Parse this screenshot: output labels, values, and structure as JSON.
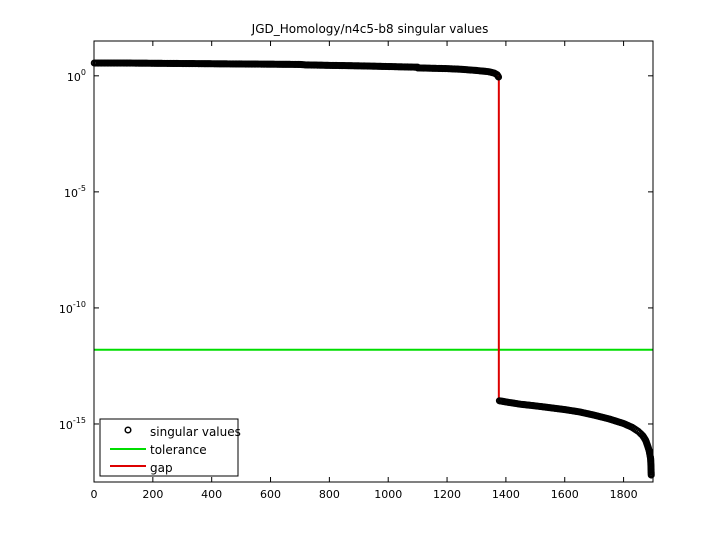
{
  "chart_data": {
    "type": "scatter",
    "title": "JGD_Homology/n4c5-b8 singular values",
    "xlabel": "",
    "ylabel": "",
    "xlim": [
      0,
      1900
    ],
    "ylim_log10": [
      -17.5,
      1.5
    ],
    "yscale": "log",
    "grid": false,
    "legend_position": "bottom-left",
    "x_ticks": [
      {
        "value": 0,
        "label": "0"
      },
      {
        "value": 200,
        "label": "200"
      },
      {
        "value": 400,
        "label": "400"
      },
      {
        "value": 600,
        "label": "600"
      },
      {
        "value": 800,
        "label": "800"
      },
      {
        "value": 1000,
        "label": "1000"
      },
      {
        "value": 1200,
        "label": "1200"
      },
      {
        "value": 1400,
        "label": "1400"
      },
      {
        "value": 1600,
        "label": "1600"
      },
      {
        "value": 1800,
        "label": "1800"
      }
    ],
    "y_ticks": [
      {
        "log10": 0,
        "base": "10",
        "exp": "0"
      },
      {
        "log10": -5,
        "base": "10",
        "exp": "-5"
      },
      {
        "log10": -10,
        "base": "10",
        "exp": "-10"
      },
      {
        "log10": -15,
        "base": "10",
        "exp": "-15"
      }
    ],
    "series": [
      {
        "name": "singular values",
        "style": "marker",
        "color": "#000000",
        "points_log10": [
          [
            1,
            0.55
          ],
          [
            100,
            0.55
          ],
          [
            200,
            0.54
          ],
          [
            300,
            0.53
          ],
          [
            400,
            0.52
          ],
          [
            500,
            0.51
          ],
          [
            600,
            0.5
          ],
          [
            700,
            0.49
          ],
          [
            720,
            0.47
          ],
          [
            800,
            0.45
          ],
          [
            900,
            0.43
          ],
          [
            1000,
            0.4
          ],
          [
            1100,
            0.37
          ],
          [
            1100,
            0.34
          ],
          [
            1200,
            0.31
          ],
          [
            1250,
            0.28
          ],
          [
            1300,
            0.23
          ],
          [
            1340,
            0.18
          ],
          [
            1360,
            0.12
          ],
          [
            1370,
            0.05
          ],
          [
            1375,
            -0.05
          ],
          [
            1378,
            -14.0
          ],
          [
            1400,
            -14.05
          ],
          [
            1450,
            -14.15
          ],
          [
            1500,
            -14.22
          ],
          [
            1550,
            -14.3
          ],
          [
            1600,
            -14.38
          ],
          [
            1650,
            -14.48
          ],
          [
            1700,
            -14.62
          ],
          [
            1750,
            -14.78
          ],
          [
            1800,
            -14.98
          ],
          [
            1830,
            -15.15
          ],
          [
            1850,
            -15.32
          ],
          [
            1865,
            -15.5
          ],
          [
            1875,
            -15.7
          ],
          [
            1882,
            -15.95
          ],
          [
            1887,
            -16.15
          ],
          [
            1890,
            -16.35
          ],
          [
            1892,
            -16.5
          ],
          [
            1893,
            -16.8
          ],
          [
            1894,
            -17.2
          ]
        ]
      },
      {
        "name": "tolerance",
        "style": "line",
        "color": "#00dd00",
        "y_log10": -11.8
      },
      {
        "name": "gap",
        "style": "line",
        "color": "#dd0000",
        "x": 1376,
        "y_log10_range": [
          -14.0,
          0.1
        ]
      }
    ]
  }
}
